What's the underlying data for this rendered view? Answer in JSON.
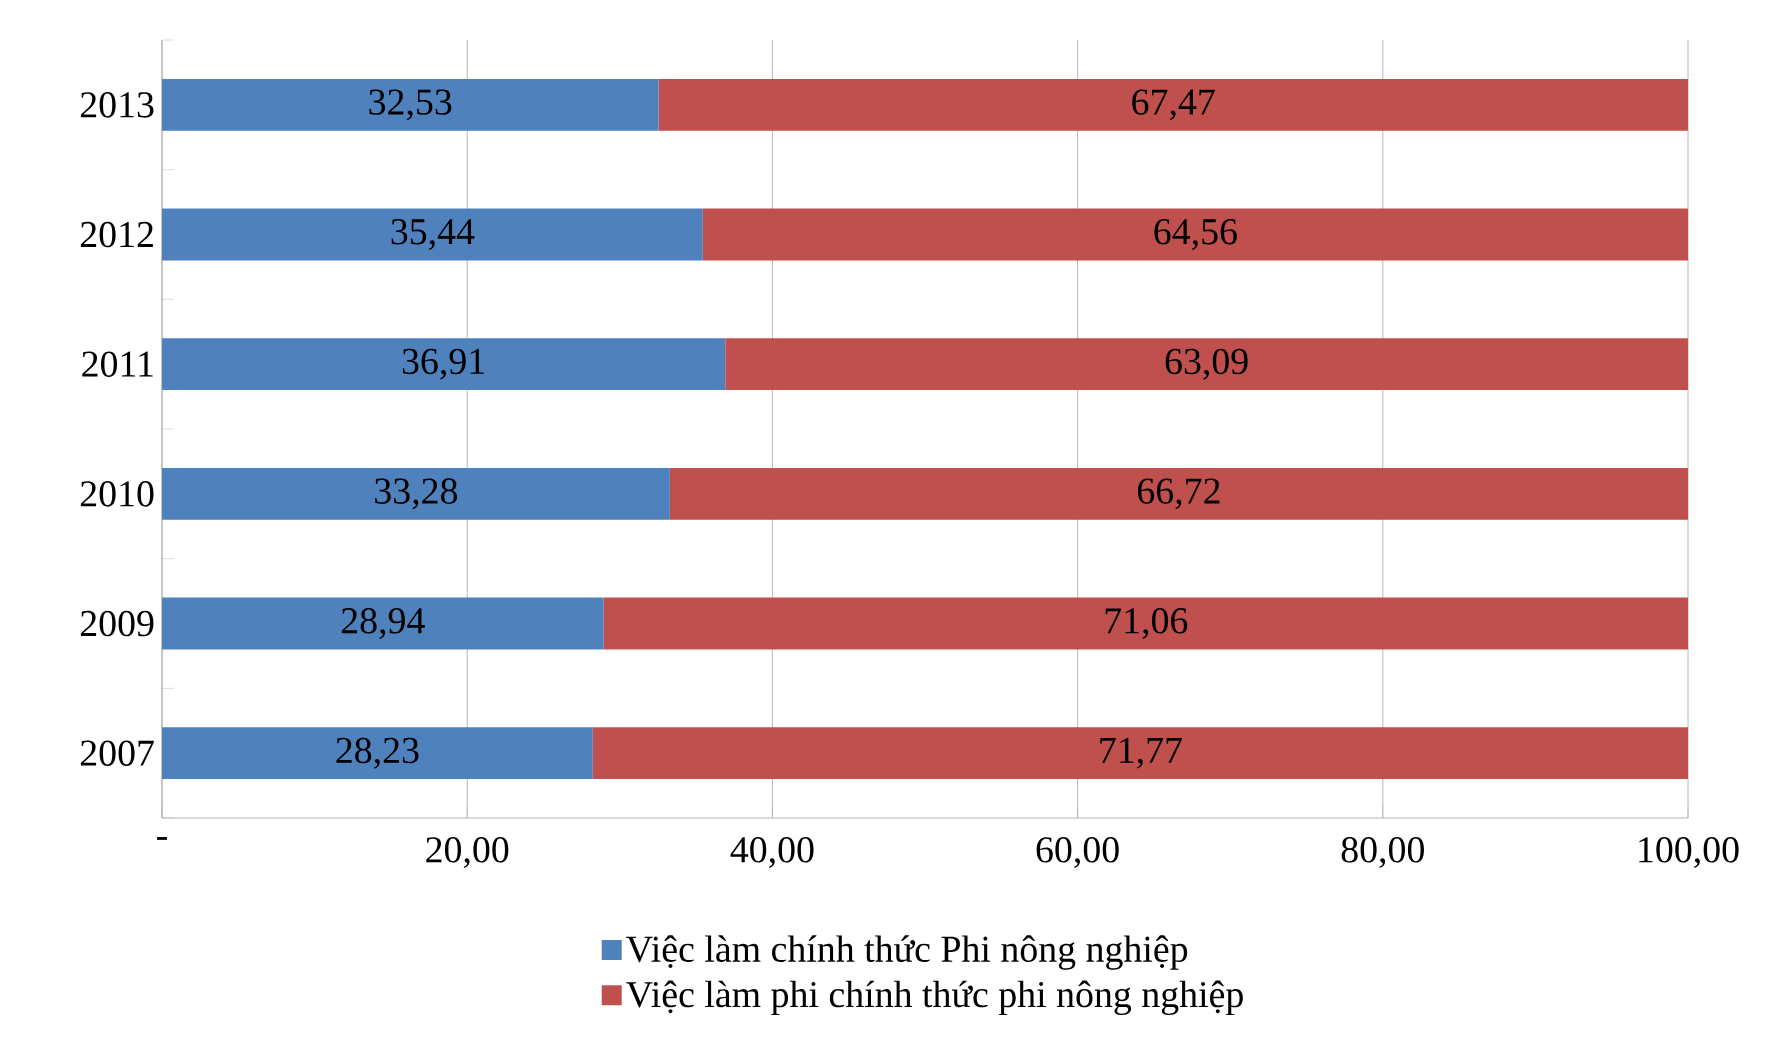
{
  "chart_data": {
    "type": "bar",
    "orientation": "horizontal",
    "stacked": true,
    "categories": [
      "2013",
      "2012",
      "2011",
      "2010",
      "2009",
      "2007"
    ],
    "series": [
      {
        "name": "Việc làm chính thức Phi nông nghiệp",
        "color": "#4f81bd",
        "values": [
          32.53,
          35.44,
          36.91,
          33.28,
          28.94,
          28.23
        ],
        "value_labels": [
          "32,53",
          "35,44",
          "36,91",
          "33,28",
          "28,94",
          "28,23"
        ]
      },
      {
        "name": "Việc làm phi chính thức phi nông nghiệp",
        "color": "#c0504d",
        "values": [
          67.47,
          64.56,
          63.09,
          66.72,
          71.06,
          71.77
        ],
        "value_labels": [
          "67,47",
          "64,56",
          "63,09",
          "66,72",
          "71,06",
          "71,77"
        ]
      }
    ],
    "xlim": [
      0,
      100
    ],
    "xticks": [
      {
        "value": 0,
        "label": "-"
      },
      {
        "value": 20,
        "label": "20,00"
      },
      {
        "value": 40,
        "label": "40,00"
      },
      {
        "value": 60,
        "label": "60,00"
      },
      {
        "value": 80,
        "label": "80,00"
      },
      {
        "value": 100,
        "label": "100,00"
      }
    ],
    "grid": "x",
    "legend": "bottom"
  }
}
